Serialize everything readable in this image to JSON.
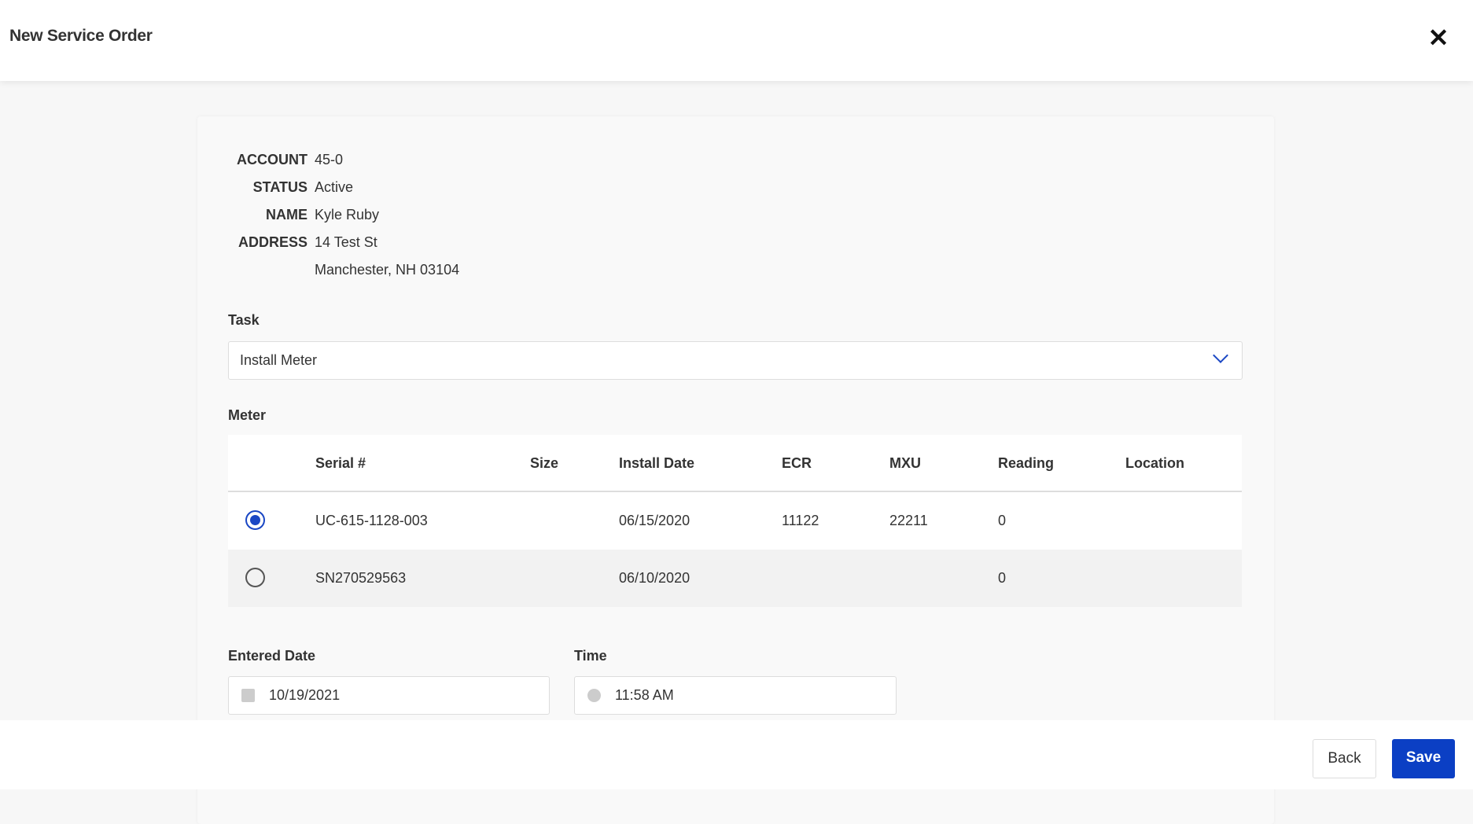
{
  "header": {
    "title": "New Service Order",
    "close_icon": "close-icon"
  },
  "account": {
    "account_label": "ACCOUNT",
    "account": "45-0",
    "status_label": "STATUS",
    "status": "Active",
    "name_label": "NAME",
    "name": "Kyle Ruby",
    "address_label": "ADDRESS",
    "address_line1": "14 Test St",
    "address_line2": "Manchester, NH 03104"
  },
  "task": {
    "label": "Task",
    "value": "Install Meter"
  },
  "meter": {
    "label": "Meter",
    "columns": [
      "Serial #",
      "Size",
      "Install Date",
      "ECR",
      "MXU",
      "Reading",
      "Location"
    ],
    "rows": [
      {
        "selected": true,
        "serial": "UC-615-1128-003",
        "size": "",
        "install_date": "06/15/2020",
        "ecr": "11122",
        "mxu": "22211",
        "reading": "0",
        "location": ""
      },
      {
        "selected": false,
        "serial": "SN270529563",
        "size": "",
        "install_date": "06/10/2020",
        "ecr": "",
        "mxu": "",
        "reading": "0",
        "location": ""
      }
    ]
  },
  "entered_date": {
    "label": "Entered Date",
    "value": "10/19/2021"
  },
  "time": {
    "label": "Time",
    "value": "11:58 AM"
  },
  "footer": {
    "back": "Back",
    "save": "Save"
  },
  "colors": {
    "accent": "#0b3fc4"
  }
}
